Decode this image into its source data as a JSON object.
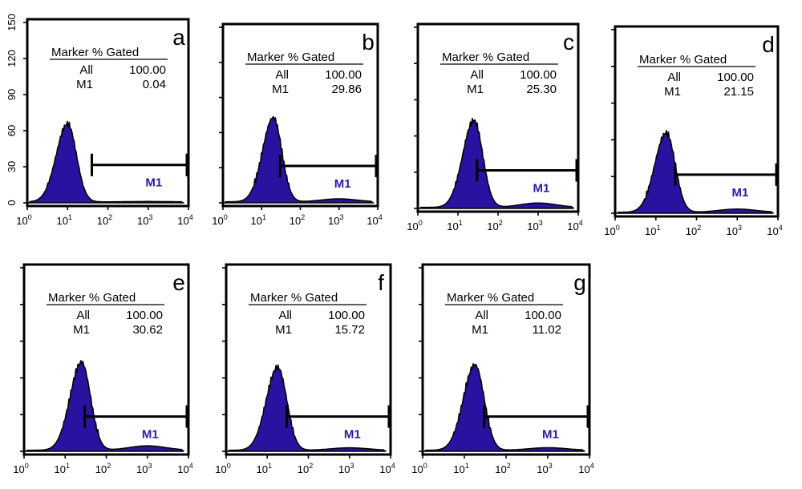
{
  "chart_data": [
    {
      "type": "area",
      "panel": "a",
      "x_scale": "log",
      "xlim": [
        1,
        10000
      ],
      "ylim": [
        0,
        150
      ],
      "yticks": [
        "0",
        "30",
        "60",
        "90",
        "120",
        "150"
      ],
      "xticks": [
        "10^0",
        "10^1",
        "10^2",
        "10^3",
        "10^4"
      ],
      "stats_header": "Marker % Gated",
      "stats": [
        {
          "marker": "All",
          "value": "100.00"
        },
        {
          "marker": "M1",
          "value": "0.04"
        }
      ],
      "gate": {
        "label": "M1",
        "from": 40,
        "to": 10000
      },
      "peak": 10,
      "peak_count": 65
    },
    {
      "type": "area",
      "panel": "b",
      "x_scale": "log",
      "xlim": [
        1,
        10000
      ],
      "xticks": [
        "10^0",
        "10^1",
        "10^2",
        "10^3",
        "10^4"
      ],
      "stats_header": "Marker % Gated",
      "stats": [
        {
          "marker": "All",
          "value": "100.00"
        },
        {
          "marker": "M1",
          "value": "29.86"
        }
      ],
      "gate": {
        "label": "M1",
        "from": 30,
        "to": 10000
      },
      "peak": 20,
      "peak_count": 72
    },
    {
      "type": "area",
      "panel": "c",
      "x_scale": "log",
      "xlim": [
        1,
        10000
      ],
      "xticks": [
        "10^0",
        "10^1",
        "10^2",
        "10^3",
        "10^4"
      ],
      "stats_header": "Marker % Gated",
      "stats": [
        {
          "marker": "All",
          "value": "100.00"
        },
        {
          "marker": "M1",
          "value": "25.30"
        }
      ],
      "gate": {
        "label": "M1",
        "from": 30,
        "to": 10000
      },
      "peak": 25,
      "peak_count": 72
    },
    {
      "type": "area",
      "panel": "d",
      "x_scale": "log",
      "xlim": [
        1,
        10000
      ],
      "xticks": [
        "10^0",
        "10^1",
        "10^2",
        "10^3",
        "10^4"
      ],
      "stats_header": "Marker % Gated",
      "stats": [
        {
          "marker": "All",
          "value": "100.00"
        },
        {
          "marker": "M1",
          "value": "21.15"
        }
      ],
      "gate": {
        "label": "M1",
        "from": 30,
        "to": 10000
      },
      "peak": 18,
      "peak_count": 65
    },
    {
      "type": "area",
      "panel": "e",
      "x_scale": "log",
      "xlim": [
        1,
        10000
      ],
      "xticks": [
        "10^0",
        "10^1",
        "10^2",
        "10^3",
        "10^4"
      ],
      "stats_header": "Marker % Gated",
      "stats": [
        {
          "marker": "All",
          "value": "100.00"
        },
        {
          "marker": "M1",
          "value": "30.62"
        }
      ],
      "gate": {
        "label": "M1",
        "from": 30,
        "to": 10000
      },
      "peak": 25,
      "peak_count": 72
    },
    {
      "type": "area",
      "panel": "f",
      "x_scale": "log",
      "xlim": [
        1,
        10000
      ],
      "xticks": [
        "10^0",
        "10^1",
        "10^2",
        "10^3",
        "10^4"
      ],
      "stats_header": "Marker % Gated",
      "stats": [
        {
          "marker": "All",
          "value": "100.00"
        },
        {
          "marker": "M1",
          "value": "15.72"
        }
      ],
      "gate": {
        "label": "M1",
        "from": 30,
        "to": 10000
      },
      "peak": 18,
      "peak_count": 68
    },
    {
      "type": "area",
      "panel": "g",
      "x_scale": "log",
      "xlim": [
        1,
        10000
      ],
      "xticks": [
        "10^0",
        "10^1",
        "10^2",
        "10^3",
        "10^4"
      ],
      "stats_header": "Marker % Gated",
      "stats": [
        {
          "marker": "All",
          "value": "100.00"
        },
        {
          "marker": "M1",
          "value": "11.02"
        }
      ],
      "gate": {
        "label": "M1",
        "from": 30,
        "to": 10000
      },
      "peak": 18,
      "peak_count": 70
    }
  ],
  "colors": {
    "histogram_fill": "#2a11a0",
    "gate_label": "#2a1ca0"
  }
}
